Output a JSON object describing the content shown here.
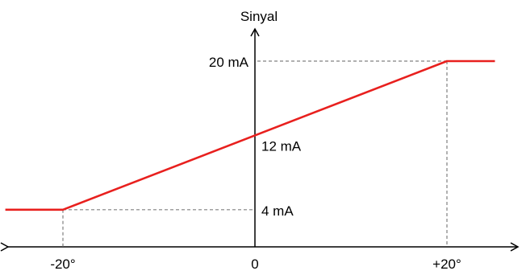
{
  "chart_data": {
    "type": "line",
    "title": "",
    "ylabel": "Sinyal",
    "xlabel": "",
    "x_tick_labels": [
      "-20°",
      "0",
      "+20°"
    ],
    "x_ticks": [
      -20,
      0,
      20
    ],
    "y_tick_labels": [
      "4 mA",
      "12 mA",
      "20 mA"
    ],
    "y_ticks": [
      4,
      12,
      20
    ],
    "xlim": [
      -30,
      30
    ],
    "ylim": [
      0,
      24
    ],
    "grid": false,
    "guides": [
      {
        "x": -20,
        "y": 4
      },
      {
        "x": 20,
        "y": 20
      }
    ],
    "series": [
      {
        "x": [
          -26,
          -20,
          20,
          25
        ],
        "y": [
          4,
          4,
          20,
          20
        ],
        "color": "#e8201e"
      }
    ]
  }
}
